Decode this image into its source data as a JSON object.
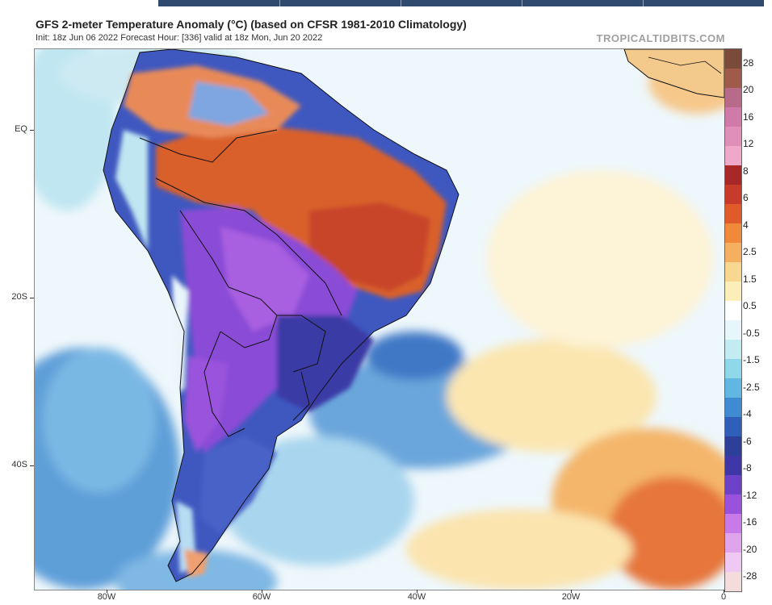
{
  "header": {
    "title": "GFS 2-meter Temperature Anomaly (°C) (based on CFSR 1981-2010 Climatology)",
    "subtitle": "Init: 18z Jun 06 2022   Forecast Hour: [336]   valid at 18z Mon, Jun 20 2022",
    "brand": "TROPICALTIDBITS.COM"
  },
  "axes": {
    "lat_labels": [
      "EQ",
      "20S",
      "40S"
    ],
    "lon_labels": [
      "80W",
      "60W",
      "40W",
      "20W",
      "0"
    ]
  },
  "colorbar": {
    "labels": [
      "28",
      "20",
      "16",
      "12",
      "8",
      "6",
      "4",
      "2.5",
      "1.5",
      "0.5",
      "-0.5",
      "-1.5",
      "-2.5",
      "-4",
      "-6",
      "-8",
      "-12",
      "-16",
      "-20",
      "-28"
    ],
    "colors": [
      "#7a4a3a",
      "#a05a4a",
      "#b86a8a",
      "#d07aaa",
      "#e090b8",
      "#f0a8c8",
      "#a82828",
      "#c83a2a",
      "#e05a2a",
      "#f08a3a",
      "#f4b060",
      "#f8d890",
      "#fbeeb8",
      "#ffffff",
      "#e6f6fb",
      "#c2ecf2",
      "#8fd8ea",
      "#62b6e2",
      "#3f8ad0",
      "#2f5fb8",
      "#2d3f98",
      "#3f36a8",
      "#6e42c8",
      "#9a52dc",
      "#c87ae8",
      "#e0a4ec",
      "#f0c8f4",
      "#f4dcdc"
    ]
  },
  "colors": {
    "warm_anomaly": "#d9612c",
    "cold_anomaly": "#8a4cd6",
    "ocean_neutral": "#eaf4fb"
  }
}
